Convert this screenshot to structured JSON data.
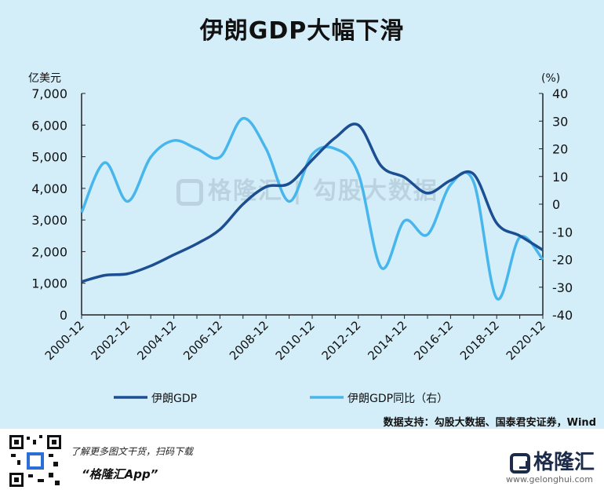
{
  "title": "伊朗GDP大幅下滑",
  "colors": {
    "gdp": "#1b4e93",
    "yoy": "#47b6ec",
    "axis": "#222222"
  },
  "chart_data": {
    "type": "line",
    "x": [
      "2000-12",
      "2001-12",
      "2002-12",
      "2003-12",
      "2004-12",
      "2005-12",
      "2006-12",
      "2007-12",
      "2008-12",
      "2009-12",
      "2010-12",
      "2011-12",
      "2012-12",
      "2013-12",
      "2014-12",
      "2015-12",
      "2016-12",
      "2017-12",
      "2018-12",
      "2019-12",
      "2020-12"
    ],
    "x_tick_labels": [
      "2000-12",
      "2002-12",
      "2004-12",
      "2006-12",
      "2008-12",
      "2010-12",
      "2012-12",
      "2014-12",
      "2016-12",
      "2018-12",
      "2020-12"
    ],
    "series": [
      {
        "name": "伊朗GDP",
        "axis": "left",
        "values": [
          1050,
          1250,
          1300,
          1550,
          1900,
          2250,
          2700,
          3500,
          4050,
          4150,
          4900,
          5600,
          6000,
          4700,
          4350,
          3850,
          4250,
          4450,
          2900,
          2500,
          2050
        ]
      },
      {
        "name": "伊朗GDP同比（右）",
        "axis": "right",
        "values": [
          -3,
          15,
          1,
          17,
          23,
          20,
          17,
          31,
          20,
          1,
          18,
          20,
          11,
          -23,
          -6,
          -11,
          7,
          8,
          -34,
          -12,
          -20
        ]
      }
    ],
    "ylabel_left": "亿美元",
    "ylabel_right": "(%)",
    "ylim_left": [
      0,
      7000
    ],
    "ylim_right": [
      -40,
      40
    ],
    "yticks_left": [
      "0",
      "1,000",
      "2,000",
      "3,000",
      "4,000",
      "5,000",
      "6,000",
      "7,000"
    ],
    "yticks_right": [
      "-40",
      "-30",
      "-20",
      "-10",
      "0",
      "10",
      "20",
      "30",
      "40"
    ],
    "legend_position": "bottom",
    "grid": false
  },
  "source": "数据支持：勾股大数据、国泰君安证券，Wind",
  "watermark": "格隆汇 | 勾股大数据",
  "promo": {
    "line1": "了解更多图文干货，扫码下载",
    "line2": "“格隆汇App”"
  },
  "brand": {
    "name": "格隆汇",
    "sub": "www.gelonghui.com"
  },
  "icons": [
    "qr-code-icon",
    "gelonghui-logo-icon"
  ]
}
